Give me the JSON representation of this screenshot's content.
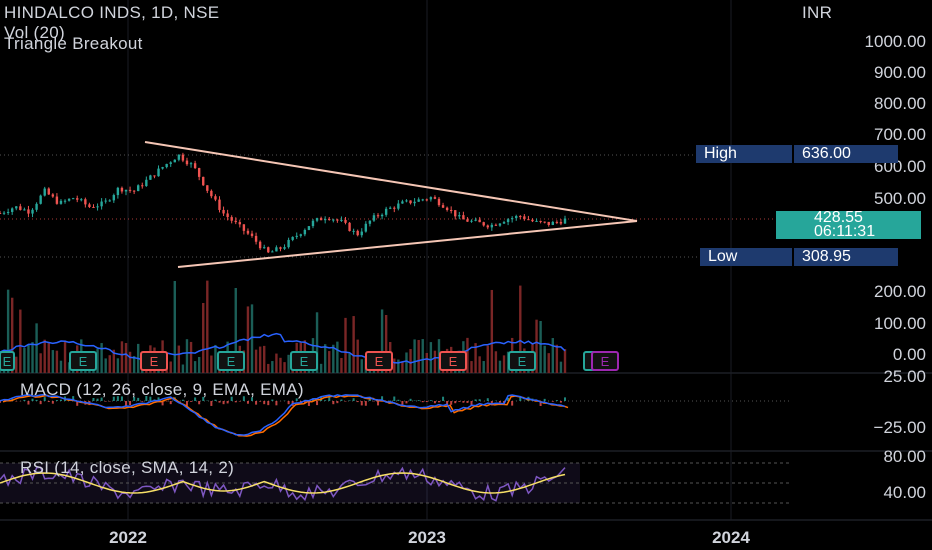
{
  "header": {
    "title": "HINDALCO INDS, 1D, NSE",
    "vol_label": "Vol (20)",
    "study_label": "Triangle Breakout",
    "currency": "INR"
  },
  "tags": {
    "high_label": "High",
    "high_value": "636.00",
    "low_label": "Low",
    "low_value": "308.95",
    "last_price": "428.55",
    "countdown": "06:11:31"
  },
  "colors": {
    "background": "#000000",
    "up": "#26a69a",
    "down": "#ef5350",
    "trendline": "#f5c6b5",
    "macd": "#2962ff",
    "signal": "#ff6d00",
    "rsi": "#7e57c2",
    "rsi_ma": "#f7e067",
    "tag_bg": "#1e3a6e",
    "last_bg": "#26a69a",
    "earnings_up": "#26a69a",
    "earnings_down": "#ef5350",
    "earnings_future": "#9c27b0"
  },
  "chart_data": [
    {
      "type": "line",
      "name": "price",
      "x_ticks": [
        "2022",
        "2023",
        "2024"
      ],
      "y_ticks": [
        "1000.00",
        "900.00",
        "800.00",
        "700.00",
        "600.00",
        "500.00"
      ],
      "ylim": [
        300,
        1050
      ],
      "path": [
        [
          0,
          450
        ],
        [
          0.03,
          470
        ],
        [
          0.06,
          455
        ],
        [
          0.09,
          520
        ],
        [
          0.12,
          480
        ],
        [
          0.15,
          500
        ],
        [
          0.18,
          470
        ],
        [
          0.21,
          480
        ],
        [
          0.24,
          530
        ],
        [
          0.27,
          520
        ],
        [
          0.3,
          560
        ],
        [
          0.33,
          600
        ],
        [
          0.36,
          636
        ],
        [
          0.39,
          600
        ],
        [
          0.42,
          520
        ],
        [
          0.45,
          450
        ],
        [
          0.48,
          410
        ],
        [
          0.51,
          370
        ],
        [
          0.54,
          320
        ],
        [
          0.57,
          340
        ],
        [
          0.6,
          380
        ],
        [
          0.63,
          420
        ],
        [
          0.66,
          440
        ],
        [
          0.69,
          420
        ],
        [
          0.72,
          380
        ],
        [
          0.75,
          430
        ],
        [
          0.78,
          460
        ],
        [
          0.81,
          480
        ],
        [
          0.84,
          490
        ],
        [
          0.87,
          500
        ],
        [
          0.9,
          470
        ],
        [
          0.93,
          430
        ],
        [
          0.96,
          420
        ],
        [
          0.99,
          410
        ],
        [
          1.02,
          430
        ],
        [
          1.05,
          440
        ],
        [
          1.08,
          420
        ],
        [
          1.11,
          415
        ],
        [
          1.14,
          428.55
        ]
      ],
      "trendlines": [
        {
          "name": "upper",
          "from": [
            -0.12,
            700
          ],
          "to": [
            1.18,
            430
          ]
        },
        {
          "name": "lower",
          "from": [
            -0.12,
            300
          ],
          "to": [
            1.18,
            430
          ]
        }
      ],
      "high": 636.0,
      "low": 308.95,
      "last": 428.55
    },
    {
      "type": "bar",
      "name": "volume",
      "y_ticks": [
        "200.00",
        "100.00",
        "0.00"
      ],
      "ylim": [
        0,
        270
      ],
      "ma_label": "Vol (20)"
    },
    {
      "type": "line",
      "name": "MACD",
      "title": "MACD (12, 26, close, 9, EMA, EMA)",
      "y_ticks": [
        "25.00",
        "−25.00"
      ],
      "ylim": [
        -45,
        30
      ]
    },
    {
      "type": "line",
      "name": "RSI",
      "title": "RSI (14, close, SMA, 14, 2)",
      "y_ticks": [
        "80.00",
        "40.00"
      ],
      "ylim": [
        20,
        90
      ],
      "band": [
        30,
        70
      ]
    }
  ],
  "earnings": [
    {
      "label": "E",
      "kind": "up"
    },
    {
      "label": "E",
      "kind": "up"
    },
    {
      "label": "E",
      "kind": "down"
    },
    {
      "label": "E",
      "kind": "up"
    },
    {
      "label": "E",
      "kind": "up"
    },
    {
      "label": "E",
      "kind": "down"
    },
    {
      "label": "E",
      "kind": "down"
    },
    {
      "label": "E",
      "kind": "up"
    },
    {
      "label": "E",
      "kind": "up"
    },
    {
      "label": "E",
      "kind": "future"
    }
  ]
}
